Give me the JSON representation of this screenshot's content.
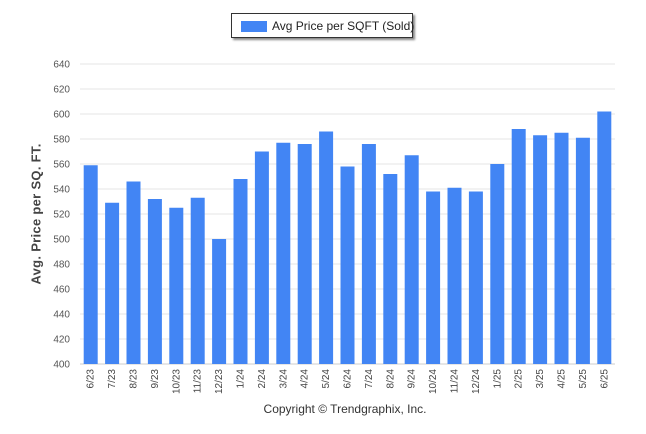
{
  "chart_data": {
    "type": "bar",
    "categories": [
      "6/23",
      "7/23",
      "8/23",
      "9/23",
      "10/23",
      "11/23",
      "12/23",
      "1/24",
      "2/24",
      "3/24",
      "4/24",
      "5/24",
      "6/24",
      "7/24",
      "8/24",
      "9/24",
      "10/24",
      "11/24",
      "12/24",
      "1/25",
      "2/25",
      "3/25",
      "4/25",
      "5/25",
      "6/25"
    ],
    "series": [
      {
        "name": "Avg Price per SQFT (Sold)",
        "values": [
          559,
          529,
          546,
          532,
          525,
          533,
          500,
          548,
          570,
          577,
          576,
          586,
          558,
          576,
          552,
          567,
          538,
          541,
          538,
          560,
          588,
          583,
          585,
          581,
          602
        ]
      }
    ],
    "xlabel": "",
    "ylabel": "Avg. Price per SQ. FT.",
    "ylim": [
      400,
      640
    ],
    "yticks": [
      400,
      420,
      440,
      460,
      480,
      500,
      520,
      540,
      560,
      580,
      600,
      620,
      640
    ],
    "grid": true,
    "legend_position": "top-center",
    "colors": {
      "bar": "#4285f4",
      "grid": "#e6e6e6",
      "axis": "#cccccc"
    }
  },
  "footer": {
    "copyright": "Copyright © Trendgraphix, Inc."
  }
}
